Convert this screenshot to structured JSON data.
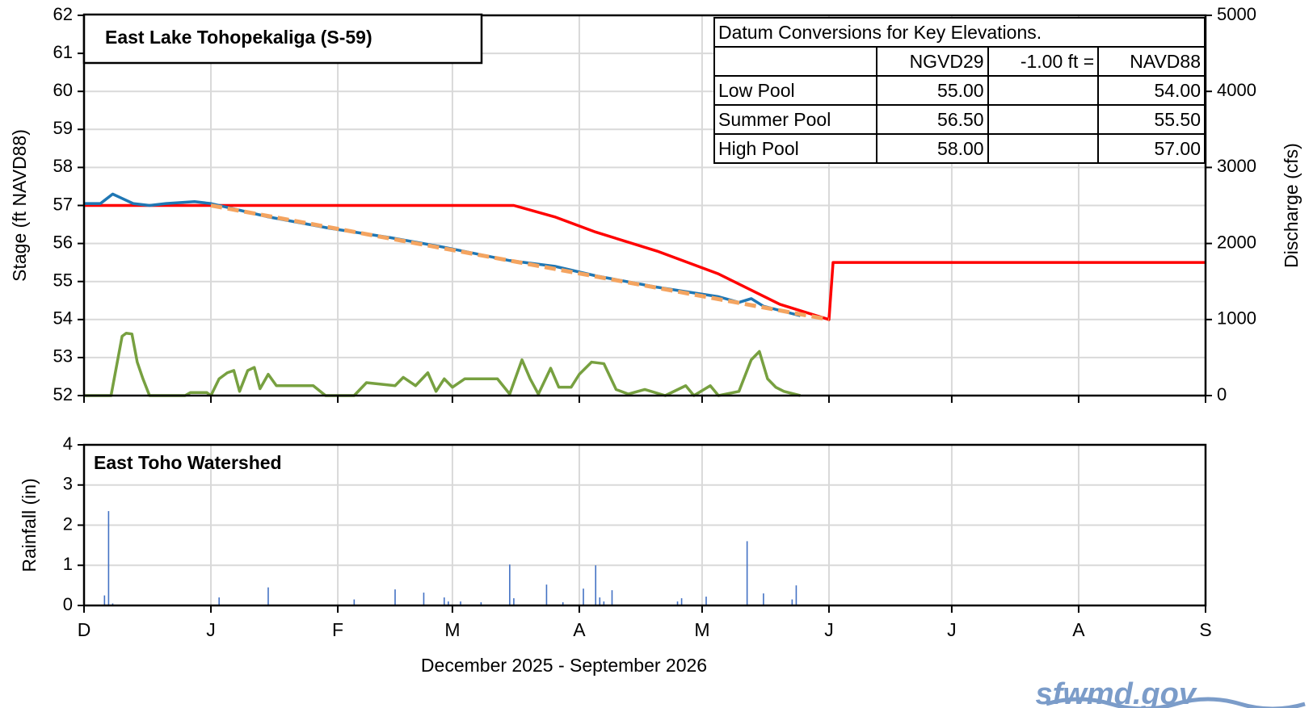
{
  "chart_data": [
    {
      "type": "line",
      "title": "East Lake Tohopekaliga  (S-59)",
      "ylabel": "Stage (ft NAVD88)",
      "y2label": "Discharge (cfs)",
      "xlim": [
        0,
        274
      ],
      "xticks": [
        0,
        31,
        62,
        90,
        121,
        151,
        182,
        212,
        243,
        274
      ],
      "ylim": [
        52,
        62
      ],
      "yticks": [
        52,
        53,
        54,
        55,
        56,
        57,
        58,
        59,
        60,
        61,
        62
      ],
      "y2lim": [
        0,
        5000
      ],
      "y2ticks": [
        0,
        1000,
        2000,
        3000,
        4000,
        5000
      ],
      "grid": true,
      "series": [
        {
          "color": "#ff0000",
          "style": "solid",
          "x": [
            0,
            105,
            115,
            125,
            140,
            155,
            170,
            182,
            183,
            274
          ],
          "values": [
            57,
            57,
            56.7,
            56.3,
            55.8,
            55.2,
            54.4,
            54.0,
            55.5,
            55.5
          ]
        },
        {
          "color": "#1f77b4",
          "style": "solid",
          "x": [
            0,
            4,
            7,
            9,
            12,
            16,
            20,
            27,
            31,
            45,
            60,
            75,
            88,
            104,
            115,
            125,
            140,
            155,
            160,
            163,
            166,
            175
          ],
          "values": [
            57.05,
            57.05,
            57.3,
            57.2,
            57.05,
            57.0,
            57.05,
            57.1,
            57.05,
            56.7,
            56.4,
            56.15,
            55.9,
            55.55,
            55.4,
            55.15,
            54.85,
            54.6,
            54.45,
            54.55,
            54.35,
            54.1
          ]
        },
        {
          "color": "#f4a460",
          "style": "dashed",
          "x": [
            31,
            182
          ],
          "values": [
            57.0,
            54.0
          ]
        },
        {
          "color": "#77a040",
          "style": "solid",
          "axis": "y2",
          "x": [
            0,
            6.6,
            9.3,
            10.3,
            11.7,
            13,
            14.4,
            16,
            24.7,
            26,
            30,
            31,
            33,
            35,
            36.6,
            38,
            40,
            41.6,
            43,
            45,
            47,
            56,
            59,
            66,
            69,
            76,
            78,
            81,
            84,
            86,
            88,
            90,
            93,
            101,
            104,
            107,
            109,
            111,
            114,
            116,
            119,
            121,
            124,
            127,
            130,
            133,
            137,
            142,
            147,
            149,
            153,
            155,
            160,
            163,
            165,
            167,
            169,
            171,
            175
          ],
          "values": [
            0,
            0,
            780,
            820,
            810,
            440,
            220,
            0,
            0,
            40,
            40,
            0,
            220,
            300,
            330,
            55,
            330,
            370,
            90,
            280,
            130,
            130,
            0,
            0,
            170,
            130,
            240,
            130,
            300,
            55,
            220,
            110,
            220,
            220,
            20,
            470,
            220,
            20,
            360,
            110,
            110,
            280,
            440,
            420,
            80,
            20,
            80,
            0,
            130,
            0,
            130,
            0,
            55,
            470,
            580,
            220,
            110,
            55,
            0
          ]
        }
      ]
    },
    {
      "type": "bar",
      "title": "East Toho Watershed",
      "ylabel": "Rainfall (in)",
      "xlabel": "December 2025 - September 2026",
      "xlim": [
        0,
        274
      ],
      "xticks": [
        {
          "value": 0,
          "label": "D"
        },
        {
          "value": 31,
          "label": "J"
        },
        {
          "value": 62,
          "label": "F"
        },
        {
          "value": 90,
          "label": "M"
        },
        {
          "value": 121,
          "label": "A"
        },
        {
          "value": 151,
          "label": "M"
        },
        {
          "value": 182,
          "label": "J"
        },
        {
          "value": 212,
          "label": "J"
        },
        {
          "value": 243,
          "label": "A"
        },
        {
          "value": 274,
          "label": "S"
        }
      ],
      "ylim": [
        0,
        4
      ],
      "yticks": [
        0,
        1,
        2,
        3,
        4
      ],
      "grid": true,
      "color": "#4472c4",
      "x": [
        5,
        6,
        7,
        33,
        45,
        66,
        76,
        83,
        88,
        89,
        92,
        97,
        104,
        105,
        113,
        117,
        122,
        125,
        126,
        127,
        129,
        145,
        146,
        152,
        162,
        166,
        173,
        174
      ],
      "values": [
        0.25,
        2.35,
        0.05,
        0.2,
        0.45,
        0.15,
        0.4,
        0.32,
        0.2,
        0.1,
        0.1,
        0.08,
        1.02,
        0.18,
        0.52,
        0.08,
        0.42,
        1.0,
        0.2,
        0.1,
        0.38,
        0.1,
        0.18,
        0.22,
        1.6,
        0.3,
        0.15,
        0.5
      ]
    }
  ],
  "table": {
    "title": "Datum Conversions for Key Elevations.",
    "header": [
      "NGVD29",
      "-1.00 ft =",
      "NAVD88"
    ],
    "rows": [
      [
        "Low Pool",
        "55.00",
        "54.00"
      ],
      [
        "Summer Pool",
        "56.50",
        "55.50"
      ],
      [
        "High Pool",
        "58.00",
        "57.00"
      ]
    ]
  },
  "logo": "sfwmd.gov"
}
